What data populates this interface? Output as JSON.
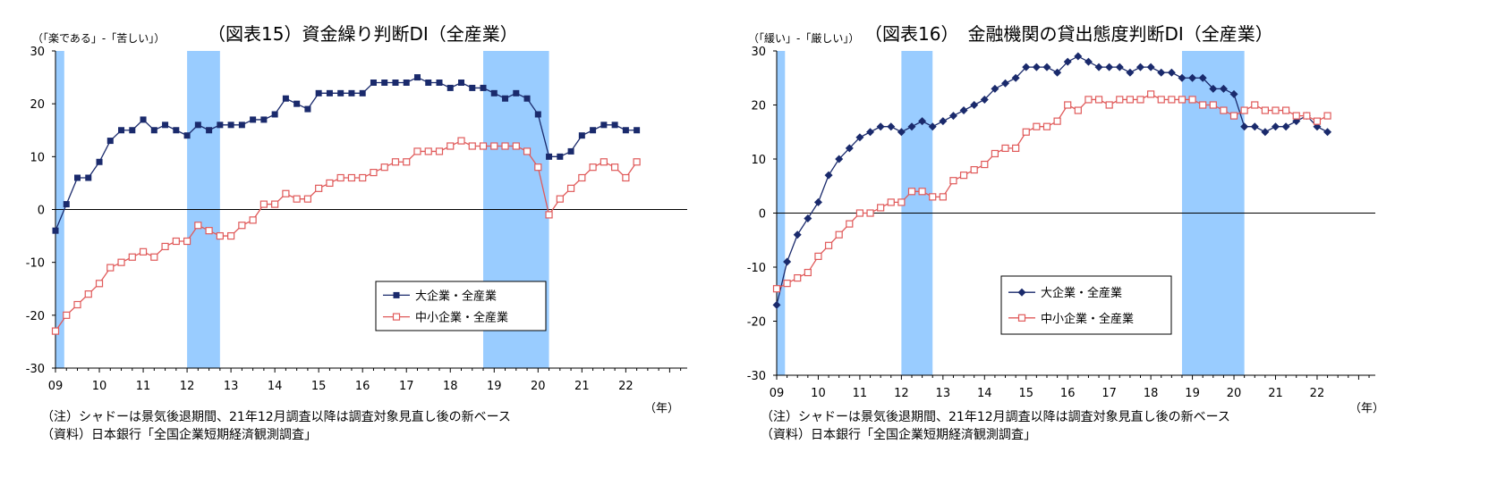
{
  "chart_data": [
    {
      "type": "line",
      "title": "（図表15）資金繰り判断DI（全産業）",
      "ylabel": "（「楽である」-「苦しい」）",
      "xlabel": "（年）",
      "ylim": [
        -30,
        30
      ],
      "yticks": [
        30,
        20,
        10,
        0,
        -10,
        -20,
        -30
      ],
      "x_tick_labels": [
        "09",
        "10",
        "11",
        "12",
        "13",
        "14",
        "15",
        "16",
        "17",
        "18",
        "19",
        "20",
        "21",
        "22"
      ],
      "legend_position": "right-middle",
      "shading": [
        [
          2009.0,
          2009.2
        ],
        [
          2012.0,
          2012.75
        ],
        [
          2018.75,
          2020.25
        ]
      ],
      "x_start": 2009.0,
      "x_step": 0.25,
      "series": [
        {
          "name": "大企業・全産業",
          "color": "#1a2a6c",
          "marker": "square-filled",
          "values": [
            -4,
            1,
            6,
            6,
            9,
            13,
            15,
            15,
            17,
            15,
            16,
            15,
            14,
            16,
            15,
            16,
            16,
            16,
            17,
            17,
            18,
            21,
            20,
            19,
            22,
            22,
            22,
            22,
            22,
            24,
            24,
            24,
            24,
            25,
            24,
            24,
            23,
            24,
            23,
            23,
            22,
            21,
            22,
            21,
            18,
            10,
            10,
            11,
            14,
            15,
            16,
            16,
            15,
            15
          ]
        },
        {
          "name": "中小企業・全産業",
          "color": "#e05a5a",
          "marker": "square-open",
          "values": [
            -23,
            -20,
            -18,
            -16,
            -14,
            -11,
            -10,
            -9,
            -8,
            -9,
            -7,
            -6,
            -6,
            -3,
            -4,
            -5,
            -5,
            -3,
            -2,
            1,
            1,
            3,
            2,
            2,
            4,
            5,
            6,
            6,
            6,
            7,
            8,
            9,
            9,
            11,
            11,
            11,
            12,
            13,
            12,
            12,
            12,
            12,
            12,
            11,
            8,
            -1,
            2,
            4,
            6,
            8,
            9,
            8,
            6,
            9
          ]
        }
      ],
      "notes": [
        "（注）シャドーは景気後退期間、21年12月調査以降は調査対象見直し後の新ベース",
        "（資料）日本銀行「全国企業短期経済観測調査」"
      ]
    },
    {
      "type": "line",
      "title": "（図表16）　金融機関の貸出態度判断DI（全産業）",
      "ylabel": "（「緩い」-「厳しい」）",
      "xlabel": "（年）",
      "ylim": [
        -30,
        30
      ],
      "yticks": [
        30,
        20,
        10,
        0,
        -10,
        -20,
        -30
      ],
      "x_tick_labels": [
        "09",
        "10",
        "11",
        "12",
        "13",
        "14",
        "15",
        "16",
        "17",
        "18",
        "19",
        "20",
        "21",
        "22"
      ],
      "legend_position": "right-middle",
      "shading": [
        [
          2009.0,
          2009.2
        ],
        [
          2012.0,
          2012.75
        ],
        [
          2018.75,
          2020.25
        ]
      ],
      "x_start": 2009.0,
      "x_step": 0.25,
      "series": [
        {
          "name": "大企業・全産業",
          "color": "#1a2a6c",
          "marker": "diamond-filled",
          "values": [
            -17,
            -9,
            -4,
            -1,
            2,
            7,
            10,
            12,
            14,
            15,
            16,
            16,
            15,
            16,
            17,
            16,
            17,
            18,
            19,
            20,
            21,
            23,
            24,
            25,
            27,
            27,
            27,
            26,
            28,
            29,
            28,
            27,
            27,
            27,
            26,
            27,
            27,
            26,
            26,
            25,
            25,
            25,
            23,
            23,
            22,
            16,
            16,
            15,
            16,
            16,
            17,
            18,
            16,
            15
          ]
        },
        {
          "name": "中小企業・全産業",
          "color": "#e05a5a",
          "marker": "square-open",
          "values": [
            -14,
            -13,
            -12,
            -11,
            -8,
            -6,
            -4,
            -2,
            0,
            0,
            1,
            2,
            2,
            4,
            4,
            3,
            3,
            6,
            7,
            8,
            9,
            11,
            12,
            12,
            15,
            16,
            16,
            17,
            20,
            19,
            21,
            21,
            20,
            21,
            21,
            21,
            22,
            21,
            21,
            21,
            21,
            20,
            20,
            19,
            18,
            19,
            20,
            19,
            19,
            19,
            18,
            18,
            17,
            18
          ]
        }
      ],
      "notes": [
        "（注）シャドーは景気後退期間、21年12月調査以降は調査対象見直し後の新ベース",
        "（資料）日本銀行「全国企業短期経済観測調査」"
      ]
    }
  ]
}
